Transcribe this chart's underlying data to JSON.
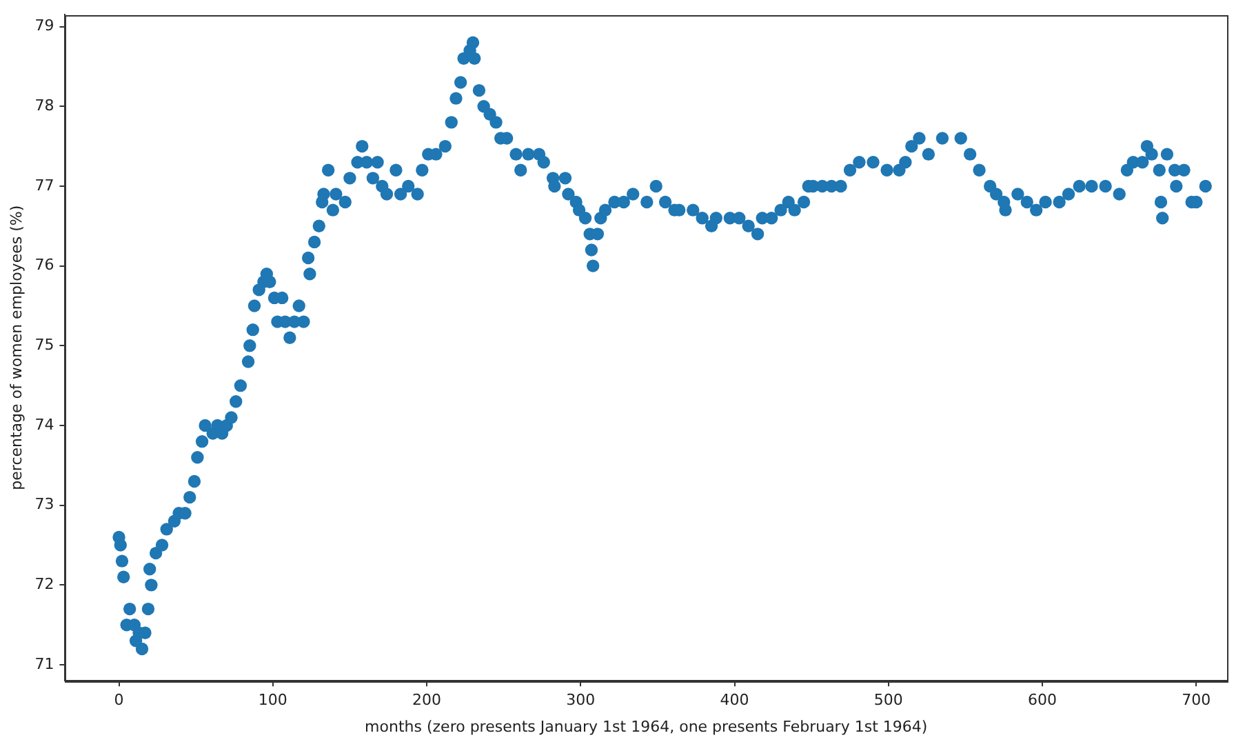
{
  "chart_data": {
    "type": "scatter",
    "xlabel": "months (zero presents January 1st 1964, one presents February 1st 1964)",
    "ylabel": "percentage of women employees (%)",
    "x": [
      0,
      1,
      2,
      3,
      5,
      7,
      10,
      11,
      13,
      15,
      17,
      19,
      20,
      21,
      24,
      28,
      31,
      36,
      39,
      43,
      46,
      49,
      51,
      54,
      56,
      61,
      64,
      67,
      70,
      73,
      76,
      79,
      84,
      85,
      87,
      88,
      91,
      94,
      96,
      98,
      101,
      103,
      106,
      108,
      111,
      114,
      117,
      120,
      123,
      124,
      127,
      130,
      132,
      133,
      136,
      139,
      141,
      147,
      150,
      155,
      158,
      161,
      165,
      168,
      171,
      174,
      180,
      183,
      188,
      194,
      197,
      201,
      206,
      212,
      216,
      219,
      222,
      224,
      228,
      230,
      231,
      234,
      237,
      241,
      245,
      248,
      252,
      258,
      261,
      266,
      273,
      276,
      282,
      283,
      290,
      292,
      297,
      299,
      303,
      306,
      307,
      308,
      311,
      313,
      316,
      322,
      328,
      334,
      343,
      349,
      355,
      361,
      364,
      373,
      379,
      385,
      388,
      397,
      403,
      409,
      415,
      418,
      424,
      430,
      435,
      439,
      445,
      448,
      451,
      457,
      463,
      469,
      475,
      481,
      490,
      499,
      507,
      511,
      515,
      520,
      526,
      535,
      547,
      553,
      559,
      566,
      570,
      575,
      576,
      584,
      590,
      596,
      602,
      611,
      617,
      624,
      632,
      641,
      650,
      655,
      659,
      665,
      668,
      671,
      676,
      677,
      678,
      681,
      686,
      687,
      692,
      697,
      700,
      706
    ],
    "values": [
      72.6,
      72.5,
      72.3,
      72.1,
      71.5,
      71.7,
      71.5,
      71.3,
      71.4,
      71.2,
      71.4,
      71.7,
      72.2,
      72.0,
      72.4,
      72.5,
      72.7,
      72.8,
      72.9,
      72.9,
      73.1,
      73.3,
      73.6,
      73.8,
      74.0,
      73.9,
      74.0,
      73.9,
      74.0,
      74.1,
      74.3,
      74.5,
      74.8,
      75.0,
      75.2,
      75.5,
      75.7,
      75.8,
      75.9,
      75.8,
      75.6,
      75.3,
      75.6,
      75.3,
      75.1,
      75.3,
      75.5,
      75.3,
      76.1,
      75.9,
      76.3,
      76.5,
      76.8,
      76.9,
      77.2,
      76.7,
      76.9,
      76.8,
      77.1,
      77.3,
      77.5,
      77.3,
      77.1,
      77.3,
      77.0,
      76.9,
      77.2,
      76.9,
      77.0,
      76.9,
      77.2,
      77.4,
      77.4,
      77.5,
      77.8,
      78.1,
      78.3,
      78.6,
      78.7,
      78.8,
      78.6,
      78.2,
      78.0,
      77.9,
      77.8,
      77.6,
      77.6,
      77.4,
      77.2,
      77.4,
      77.4,
      77.3,
      77.1,
      77.0,
      77.1,
      76.9,
      76.8,
      76.7,
      76.6,
      76.4,
      76.2,
      76.0,
      76.4,
      76.6,
      76.7,
      76.8,
      76.8,
      76.9,
      76.8,
      77.0,
      76.8,
      76.7,
      76.7,
      76.7,
      76.6,
      76.5,
      76.6,
      76.6,
      76.6,
      76.5,
      76.4,
      76.6,
      76.6,
      76.7,
      76.8,
      76.7,
      76.8,
      77.0,
      77.0,
      77.0,
      77.0,
      77.0,
      77.2,
      77.3,
      77.3,
      77.2,
      77.2,
      77.3,
      77.5,
      77.6,
      77.4,
      77.6,
      77.6,
      77.4,
      77.2,
      77.0,
      76.9,
      76.8,
      76.7,
      76.9,
      76.8,
      76.7,
      76.8,
      76.8,
      76.9,
      77.0,
      77.0,
      77.0,
      76.9,
      77.2,
      77.3,
      77.3,
      77.5,
      77.4,
      77.2,
      76.8,
      76.6,
      77.4,
      77.2,
      77.0,
      77.2,
      76.8,
      76.8,
      77.0
    ],
    "color": "#1f77b4",
    "marker": "circle",
    "grid": false,
    "xlim": [
      -35,
      720
    ],
    "ylim": [
      70.8,
      79.15
    ],
    "xticks": [
      0,
      100,
      200,
      300,
      400,
      500,
      600,
      700
    ],
    "yticks": [
      71,
      72,
      73,
      74,
      75,
      76,
      77,
      78,
      79
    ]
  }
}
